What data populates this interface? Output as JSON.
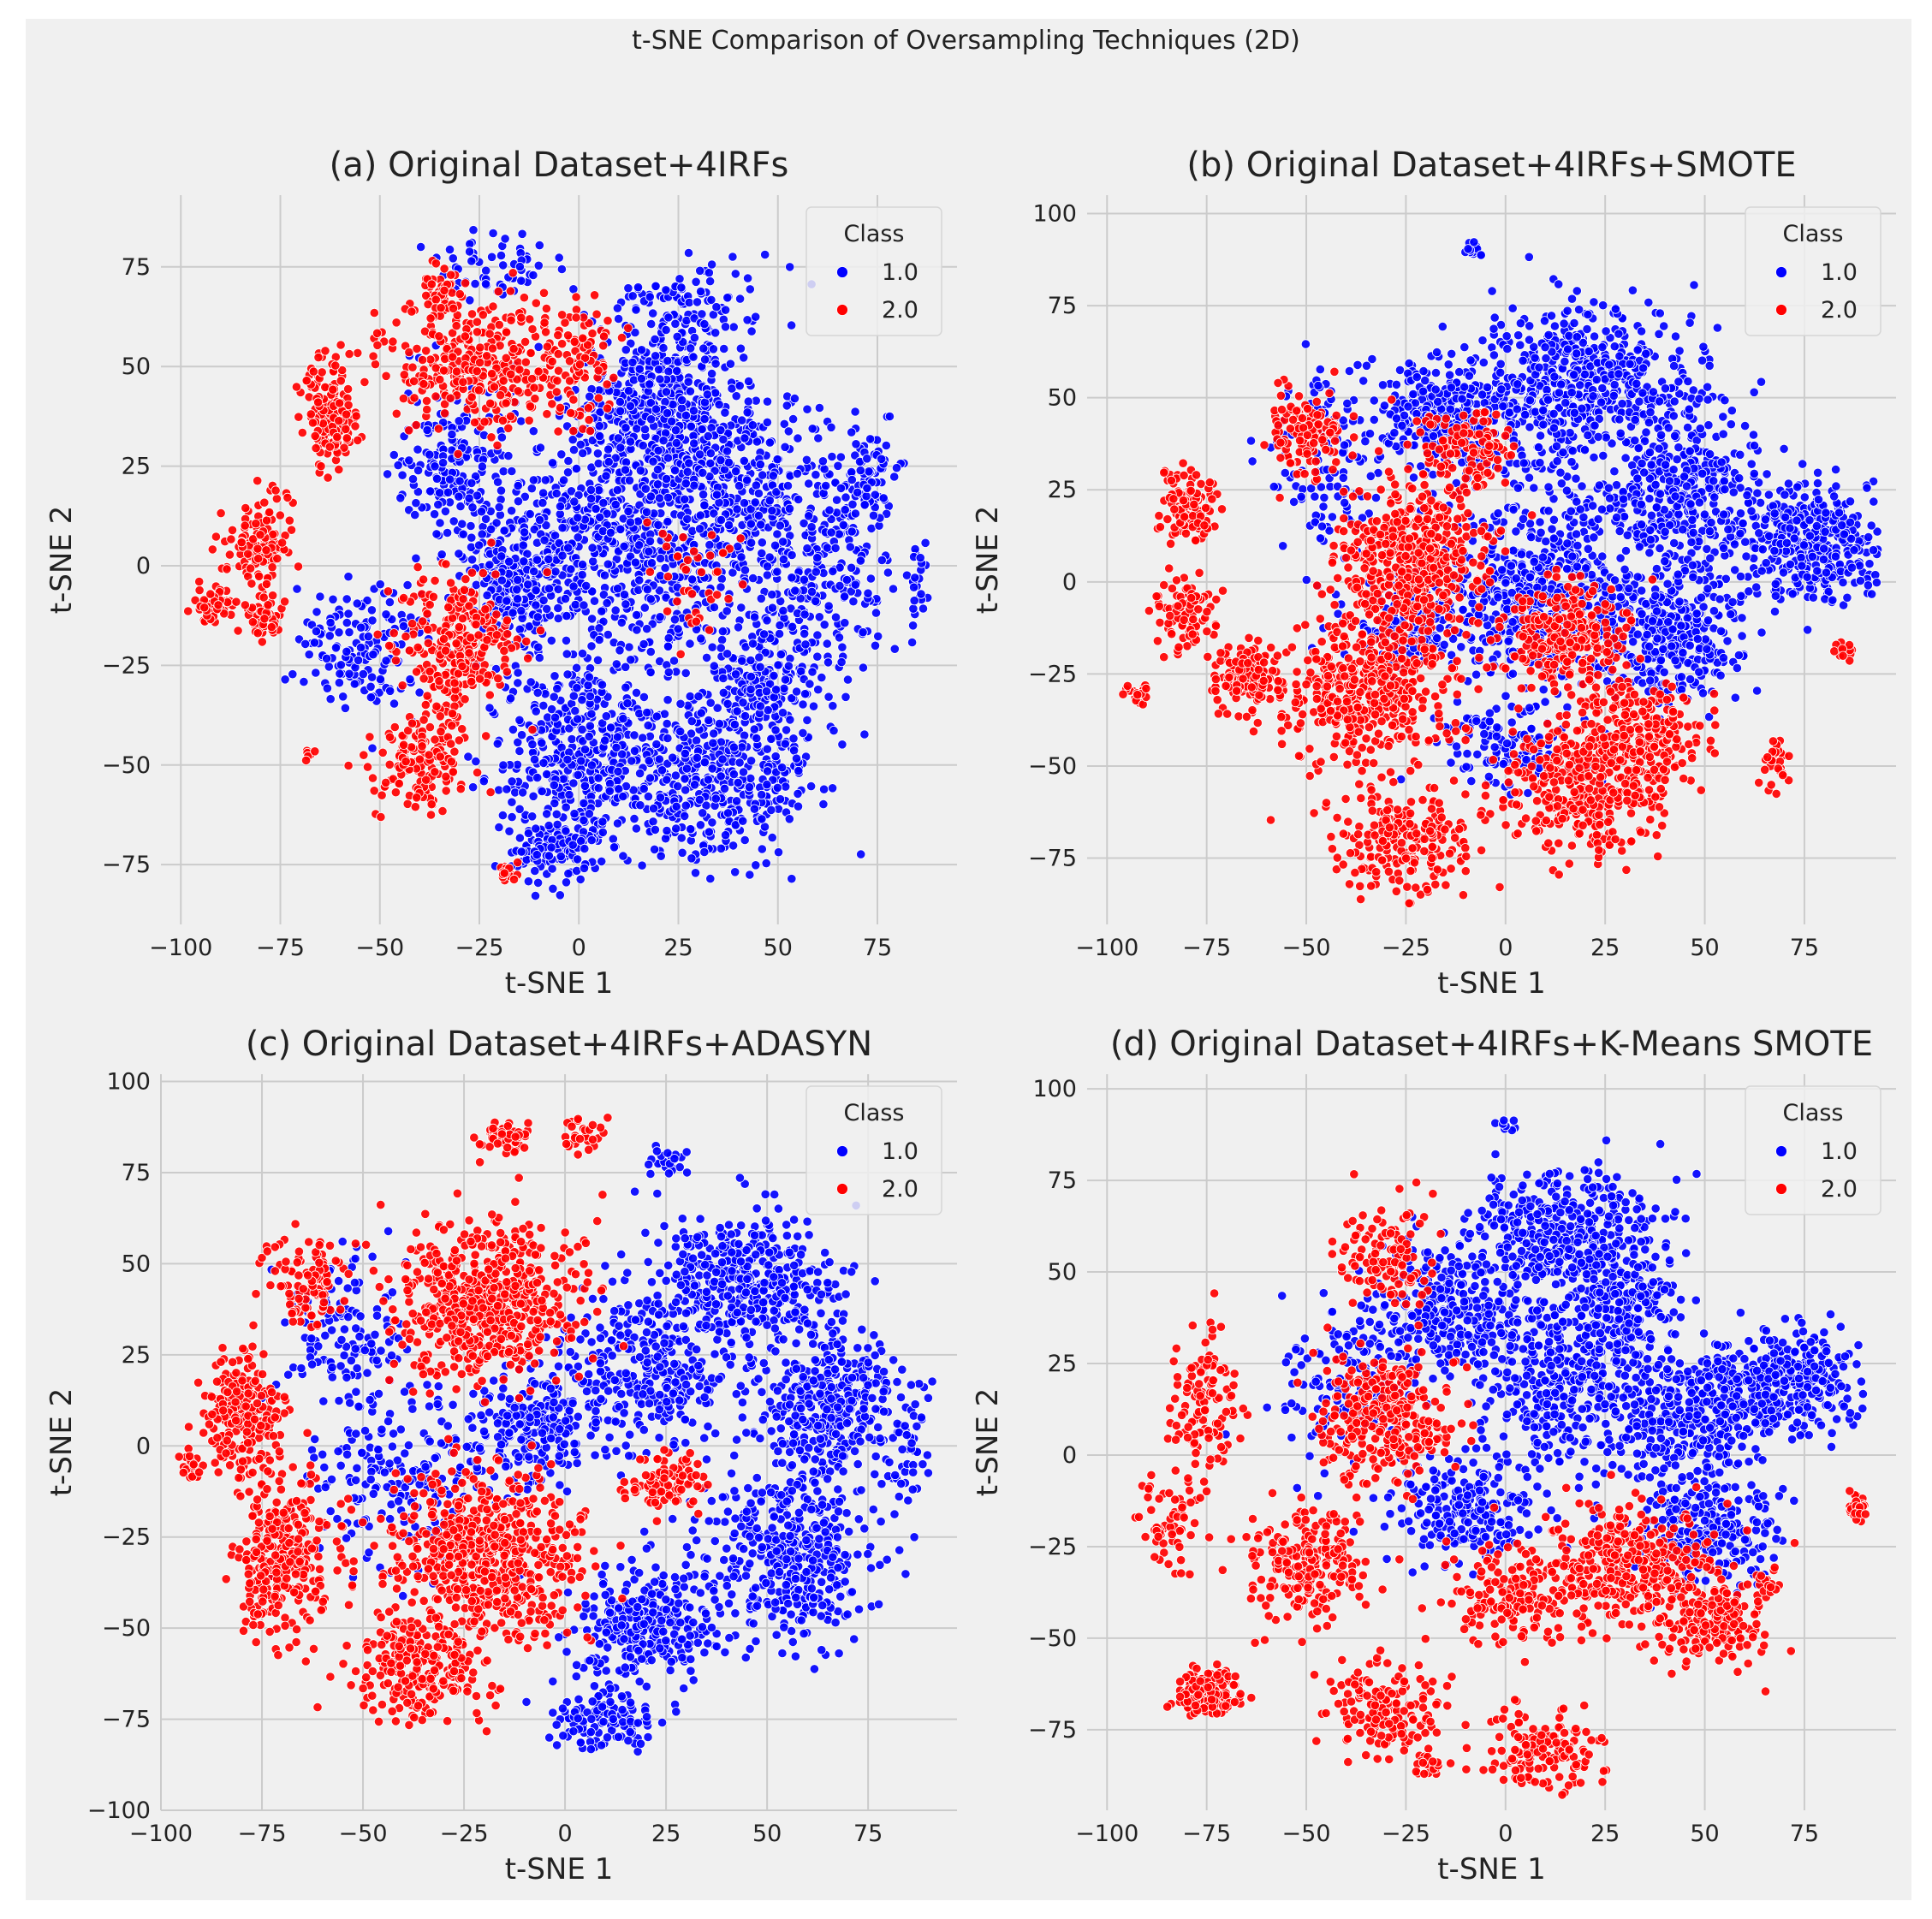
{
  "figure": {
    "suptitle": "t-SNE Comparison of Oversampling Techniques (2D)",
    "background": "#f0f0f0",
    "page_background": "#ffffff"
  },
  "colors": {
    "class_1": "#0000ff",
    "class_2": "#ff0000",
    "grid": "#cbcbcb",
    "panel_bg": "#f0f0f0",
    "text": "#222222"
  },
  "chart_data": [
    {
      "type": "scatter",
      "title": "(a) Original Dataset+4IRFs",
      "xlabel": "t-SNE 1",
      "ylabel": "t-SNE 2",
      "xlim": [
        -105,
        95
      ],
      "ylim": [
        -90,
        93
      ],
      "xticks": [
        -100,
        -75,
        -50,
        -25,
        0,
        25,
        50,
        75
      ],
      "yticks": [
        -75,
        -50,
        -25,
        0,
        25,
        50,
        75
      ],
      "legend": {
        "title": "Class",
        "placement": "top-right",
        "entries": [
          "1.0",
          "2.0"
        ]
      },
      "series": [
        {
          "name": "1.0",
          "color": "#0000ff",
          "clusters": [
            {
              "cx": 20,
              "cy": 40,
              "sx": 14,
              "sy": 12,
              "n": 420
            },
            {
              "cx": 40,
              "cy": 20,
              "sx": 18,
              "sy": 15,
              "n": 360
            },
            {
              "cx": 60,
              "cy": -5,
              "sx": 12,
              "sy": 15,
              "n": 220
            },
            {
              "cx": 5,
              "cy": 10,
              "sx": 18,
              "sy": 15,
              "n": 320
            },
            {
              "cx": -15,
              "cy": -5,
              "sx": 10,
              "sy": 10,
              "n": 260
            },
            {
              "cx": 0,
              "cy": -45,
              "sx": 15,
              "sy": 15,
              "n": 420
            },
            {
              "cx": 35,
              "cy": -55,
              "sx": 16,
              "sy": 12,
              "n": 380
            },
            {
              "cx": 45,
              "cy": -30,
              "sx": 10,
              "sy": 10,
              "n": 180
            },
            {
              "cx": -30,
              "cy": 25,
              "sx": 10,
              "sy": 15,
              "n": 200
            },
            {
              "cx": -55,
              "cy": -20,
              "sx": 10,
              "sy": 10,
              "n": 150
            },
            {
              "cx": -5,
              "cy": -70,
              "sx": 10,
              "sy": 6,
              "n": 140
            },
            {
              "cx": 20,
              "cy": 0,
              "sx": 20,
              "sy": 25,
              "n": 320
            },
            {
              "cx": 30,
              "cy": 65,
              "sx": 15,
              "sy": 8,
              "n": 110
            },
            {
              "cx": 72,
              "cy": 20,
              "sx": 6,
              "sy": 10,
              "n": 90
            },
            {
              "cx": 85,
              "cy": -5,
              "sx": 2,
              "sy": 6,
              "n": 25
            },
            {
              "cx": -20,
              "cy": 75,
              "sx": 10,
              "sy": 5,
              "n": 60
            }
          ]
        },
        {
          "name": "2.0",
          "color": "#ff0000",
          "clusters": [
            {
              "cx": -62,
              "cy": 38,
              "sx": 5,
              "sy": 9,
              "n": 160
            },
            {
              "cx": -80,
              "cy": 5,
              "sx": 6,
              "sy": 8,
              "n": 110
            },
            {
              "cx": -92,
              "cy": -10,
              "sx": 3,
              "sy": 3,
              "n": 50
            },
            {
              "cx": -80,
              "cy": -12,
              "sx": 4,
              "sy": 4,
              "n": 50
            },
            {
              "cx": -35,
              "cy": 68,
              "sx": 3,
              "sy": 4,
              "n": 50
            },
            {
              "cx": -25,
              "cy": 50,
              "sx": 14,
              "sy": 12,
              "n": 320
            },
            {
              "cx": 0,
              "cy": 50,
              "sx": 6,
              "sy": 10,
              "n": 90
            },
            {
              "cx": -30,
              "cy": -20,
              "sx": 10,
              "sy": 12,
              "n": 280
            },
            {
              "cx": -40,
              "cy": -50,
              "sx": 8,
              "sy": 8,
              "n": 150
            },
            {
              "cx": -18,
              "cy": -77,
              "sx": 2,
              "sy": 2,
              "n": 20
            },
            {
              "cx": 28,
              "cy": -5,
              "sx": 10,
              "sy": 10,
              "n": 40
            },
            {
              "cx": -68,
              "cy": -47,
              "sx": 1,
              "sy": 1,
              "n": 6
            }
          ]
        }
      ]
    },
    {
      "type": "scatter",
      "title": "(b) Original Dataset+4IRFs+SMOTE",
      "xlabel": "t-SNE 1",
      "ylabel": "t-SNE 2",
      "xlim": [
        -105,
        98
      ],
      "ylim": [
        -93,
        105
      ],
      "xticks": [
        -100,
        -75,
        -50,
        -25,
        0,
        25,
        50,
        75
      ],
      "yticks": [
        -75,
        -50,
        -25,
        0,
        25,
        50,
        75,
        100
      ],
      "legend": {
        "title": "Class",
        "placement": "top-right",
        "entries": [
          "1.0",
          "2.0"
        ]
      },
      "series": [
        {
          "name": "1.0",
          "color": "#0000ff",
          "clusters": [
            {
              "cx": 20,
              "cy": 55,
              "sx": 18,
              "sy": 14,
              "n": 520
            },
            {
              "cx": -15,
              "cy": 45,
              "sx": 12,
              "sy": 10,
              "n": 300
            },
            {
              "cx": 75,
              "cy": 10,
              "sx": 12,
              "sy": 12,
              "n": 380
            },
            {
              "cx": 45,
              "cy": 25,
              "sx": 12,
              "sy": 15,
              "n": 300
            },
            {
              "cx": 40,
              "cy": -15,
              "sx": 12,
              "sy": 10,
              "n": 300
            },
            {
              "cx": 5,
              "cy": -5,
              "sx": 12,
              "sy": 12,
              "n": 280
            },
            {
              "cx": -25,
              "cy": -10,
              "sx": 10,
              "sy": 10,
              "n": 160
            },
            {
              "cx": 15,
              "cy": 10,
              "sx": 25,
              "sy": 25,
              "n": 400
            },
            {
              "cx": 0,
              "cy": -45,
              "sx": 10,
              "sy": 8,
              "n": 120
            },
            {
              "cx": -45,
              "cy": 30,
              "sx": 10,
              "sy": 20,
              "n": 120
            },
            {
              "cx": -8,
              "cy": 90,
              "sx": 2,
              "sy": 2,
              "n": 15
            }
          ]
        },
        {
          "name": "2.0",
          "color": "#ff0000",
          "clusters": [
            {
              "cx": -25,
              "cy": 5,
              "sx": 12,
              "sy": 15,
              "n": 500
            },
            {
              "cx": -35,
              "cy": -30,
              "sx": 14,
              "sy": 12,
              "n": 420
            },
            {
              "cx": 20,
              "cy": -55,
              "sx": 15,
              "sy": 12,
              "n": 380
            },
            {
              "cx": 15,
              "cy": -15,
              "sx": 10,
              "sy": 10,
              "n": 260
            },
            {
              "cx": 35,
              "cy": -40,
              "sx": 10,
              "sy": 8,
              "n": 180
            },
            {
              "cx": -65,
              "cy": -25,
              "sx": 6,
              "sy": 6,
              "n": 140
            },
            {
              "cx": -80,
              "cy": 20,
              "sx": 4,
              "sy": 7,
              "n": 110
            },
            {
              "cx": -80,
              "cy": -10,
              "sx": 5,
              "sy": 7,
              "n": 90
            },
            {
              "cx": -92,
              "cy": -30,
              "sx": 2,
              "sy": 2,
              "n": 20
            },
            {
              "cx": -25,
              "cy": -70,
              "sx": 12,
              "sy": 10,
              "n": 220
            },
            {
              "cx": -50,
              "cy": 40,
              "sx": 6,
              "sy": 8,
              "n": 120
            },
            {
              "cx": -10,
              "cy": 35,
              "sx": 8,
              "sy": 8,
              "n": 120
            },
            {
              "cx": 68,
              "cy": -50,
              "sx": 3,
              "sy": 5,
              "n": 30
            },
            {
              "cx": 85,
              "cy": -18,
              "sx": 2,
              "sy": 2,
              "n": 15
            }
          ]
        }
      ]
    },
    {
      "type": "scatter",
      "title": "(c) Original Dataset+4IRFs+ADASYN",
      "xlabel": "t-SNE 1",
      "ylabel": "t-SNE 2",
      "xlim": [
        -100,
        97
      ],
      "ylim": [
        -100,
        102
      ],
      "xticks": [
        -100,
        -75,
        -50,
        -25,
        0,
        25,
        50,
        75
      ],
      "yticks": [
        -100,
        -75,
        -50,
        -25,
        0,
        25,
        50,
        75,
        100
      ],
      "legend": {
        "title": "Class",
        "placement": "top-right",
        "entries": [
          "1.0",
          "2.0"
        ]
      },
      "series": [
        {
          "name": "1.0",
          "color": "#0000ff",
          "clusters": [
            {
              "cx": 45,
              "cy": 45,
              "sx": 15,
              "sy": 12,
              "n": 420
            },
            {
              "cx": 65,
              "cy": 10,
              "sx": 12,
              "sy": 15,
              "n": 380
            },
            {
              "cx": 55,
              "cy": -30,
              "sx": 14,
              "sy": 15,
              "n": 420
            },
            {
              "cx": 20,
              "cy": -50,
              "sx": 12,
              "sy": 10,
              "n": 300
            },
            {
              "cx": 20,
              "cy": 20,
              "sx": 15,
              "sy": 15,
              "n": 320
            },
            {
              "cx": -10,
              "cy": 5,
              "sx": 10,
              "sy": 10,
              "n": 220
            },
            {
              "cx": -40,
              "cy": -10,
              "sx": 15,
              "sy": 15,
              "n": 180
            },
            {
              "cx": -55,
              "cy": 30,
              "sx": 10,
              "sy": 15,
              "n": 140
            },
            {
              "cx": 10,
              "cy": -75,
              "sx": 10,
              "sy": 6,
              "n": 120
            },
            {
              "cx": 85,
              "cy": 0,
              "sx": 3,
              "sy": 10,
              "n": 40
            },
            {
              "cx": 25,
              "cy": 78,
              "sx": 5,
              "sy": 3,
              "n": 25
            }
          ]
        },
        {
          "name": "2.0",
          "color": "#ff0000",
          "clusters": [
            {
              "cx": -20,
              "cy": 40,
              "sx": 15,
              "sy": 15,
              "n": 620
            },
            {
              "cx": -20,
              "cy": -30,
              "sx": 15,
              "sy": 15,
              "n": 620
            },
            {
              "cx": -70,
              "cy": -30,
              "sx": 8,
              "sy": 15,
              "n": 300
            },
            {
              "cx": -80,
              "cy": 10,
              "sx": 7,
              "sy": 10,
              "n": 220
            },
            {
              "cx": -35,
              "cy": -60,
              "sx": 12,
              "sy": 10,
              "n": 250
            },
            {
              "cx": -15,
              "cy": 85,
              "sx": 4,
              "sy": 3,
              "n": 70
            },
            {
              "cx": 5,
              "cy": 85,
              "sx": 3,
              "sy": 3,
              "n": 30
            },
            {
              "cx": 25,
              "cy": -10,
              "sx": 6,
              "sy": 6,
              "n": 90
            },
            {
              "cx": -65,
              "cy": 45,
              "sx": 6,
              "sy": 8,
              "n": 100
            },
            {
              "cx": -92,
              "cy": -5,
              "sx": 2,
              "sy": 3,
              "n": 20
            }
          ]
        }
      ]
    },
    {
      "type": "scatter",
      "title": "(d) Original Dataset+4IRFs+K-Means SMOTE",
      "xlabel": "t-SNE 1",
      "ylabel": "t-SNE 2",
      "xlim": [
        -105,
        98
      ],
      "ylim": [
        -97,
        104
      ],
      "xticks": [
        -100,
        -75,
        -50,
        -25,
        0,
        25,
        50,
        75
      ],
      "yticks": [
        -75,
        -50,
        -25,
        0,
        25,
        50,
        75,
        100
      ],
      "legend": {
        "title": "Class",
        "placement": "top-right",
        "entries": [
          "1.0",
          "2.0"
        ]
      },
      "series": [
        {
          "name": "1.0",
          "color": "#0000ff",
          "clusters": [
            {
              "cx": 15,
              "cy": 60,
              "sx": 15,
              "sy": 12,
              "n": 450
            },
            {
              "cx": -15,
              "cy": 40,
              "sx": 12,
              "sy": 12,
              "n": 300
            },
            {
              "cx": 70,
              "cy": 20,
              "sx": 12,
              "sy": 10,
              "n": 360
            },
            {
              "cx": 45,
              "cy": 10,
              "sx": 12,
              "sy": 12,
              "n": 300
            },
            {
              "cx": 50,
              "cy": -20,
              "sx": 12,
              "sy": 10,
              "n": 260
            },
            {
              "cx": 15,
              "cy": 20,
              "sx": 15,
              "sy": 15,
              "n": 360
            },
            {
              "cx": -10,
              "cy": -15,
              "sx": 12,
              "sy": 10,
              "n": 220
            },
            {
              "cx": 30,
              "cy": 40,
              "sx": 8,
              "sy": 8,
              "n": 150
            },
            {
              "cx": -40,
              "cy": 20,
              "sx": 12,
              "sy": 15,
              "n": 160
            },
            {
              "cx": 0,
              "cy": 90,
              "sx": 2,
              "sy": 1,
              "n": 8
            }
          ]
        },
        {
          "name": "2.0",
          "color": "#ff0000",
          "clusters": [
            {
              "cx": -75,
              "cy": -65,
              "sx": 5,
              "sy": 4,
              "n": 160
            },
            {
              "cx": -30,
              "cy": 10,
              "sx": 12,
              "sy": 12,
              "n": 300
            },
            {
              "cx": 30,
              "cy": -30,
              "sx": 15,
              "sy": 10,
              "n": 380
            },
            {
              "cx": 50,
              "cy": -45,
              "sx": 10,
              "sy": 8,
              "n": 180
            },
            {
              "cx": -50,
              "cy": -30,
              "sx": 10,
              "sy": 10,
              "n": 220
            },
            {
              "cx": -75,
              "cy": 15,
              "sx": 5,
              "sy": 15,
              "n": 120
            },
            {
              "cx": -85,
              "cy": -20,
              "sx": 5,
              "sy": 8,
              "n": 60
            },
            {
              "cx": -30,
              "cy": -70,
              "sx": 10,
              "sy": 8,
              "n": 160
            },
            {
              "cx": 10,
              "cy": -80,
              "sx": 10,
              "sy": 8,
              "n": 140
            },
            {
              "cx": -30,
              "cy": 55,
              "sx": 8,
              "sy": 10,
              "n": 120
            },
            {
              "cx": 0,
              "cy": -40,
              "sx": 10,
              "sy": 8,
              "n": 140
            },
            {
              "cx": 88,
              "cy": -15,
              "sx": 2,
              "sy": 3,
              "n": 25
            },
            {
              "cx": 65,
              "cy": -35,
              "sx": 3,
              "sy": 3,
              "n": 20
            },
            {
              "cx": -20,
              "cy": -85,
              "sx": 3,
              "sy": 2,
              "n": 25
            }
          ]
        }
      ]
    }
  ]
}
